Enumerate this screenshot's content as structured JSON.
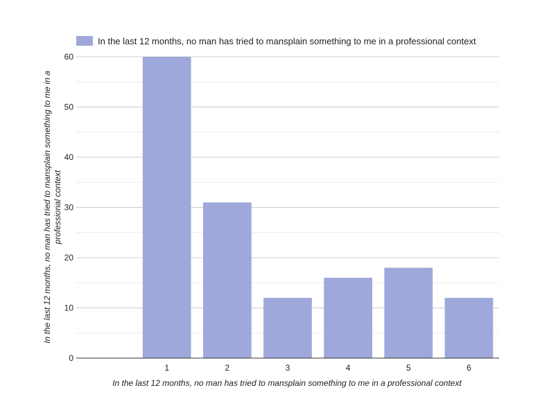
{
  "chart_data": {
    "type": "bar",
    "title": "",
    "categories": [
      "",
      "1",
      "2",
      "3",
      "4",
      "5",
      "6"
    ],
    "series": [
      {
        "name": "In the last 12 months, no man has tried to mansplain something to me in a professional context",
        "values": [
          null,
          60,
          31,
          12,
          16,
          18,
          12
        ],
        "color": "#9fa8da"
      }
    ],
    "xlabel": "In the last 12 months, no man has tried to mansplain something to me in a professional context",
    "ylabel_lines": [
      "In the last 12 months, no man has tried to mansplain something to me in a",
      "professional context"
    ],
    "ylim": [
      0,
      60
    ],
    "yticks": [
      0,
      10,
      20,
      30,
      40,
      50,
      60
    ],
    "grid": true,
    "legend_position": "top-left"
  }
}
